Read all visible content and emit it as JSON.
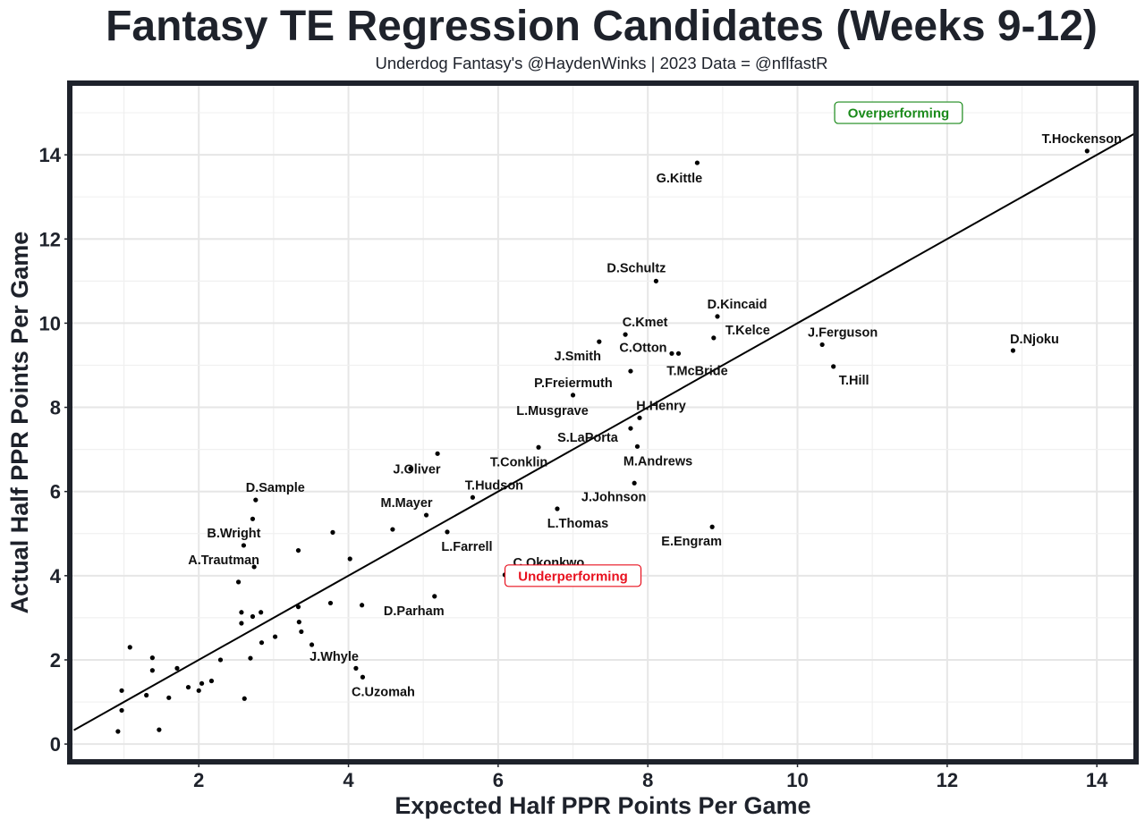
{
  "chart_data": {
    "type": "scatter",
    "title": "Fantasy TE Regression Candidates (Weeks 9-12)",
    "subtitle": "Underdog Fantasy's @HaydenWinks | 2023 Data = @nflfastR",
    "xlabel": "Expected Half PPR Points Per Game",
    "ylabel": "Actual Half PPR Points Per Game",
    "xlim": [
      0.3,
      14.5
    ],
    "ylim": [
      -0.38,
      15.66
    ],
    "xticks": [
      2,
      4,
      6,
      8,
      10,
      12,
      14
    ],
    "yticks": [
      0,
      2,
      4,
      6,
      8,
      10,
      12,
      14
    ],
    "xtick_labels": [
      "2",
      "4",
      "6",
      "8",
      "10",
      "12",
      "14"
    ],
    "ytick_labels": [
      "0",
      "2",
      "4",
      "6",
      "8",
      "10",
      "12",
      "14"
    ],
    "grid": true,
    "reference_line": {
      "type": "y=x",
      "from": [
        0.33,
        0.33
      ],
      "to": [
        14.5,
        14.5
      ]
    },
    "annotations": [
      {
        "text": "Overperforming",
        "x": 11.35,
        "y": 15.0,
        "color": "#1a8a1a"
      },
      {
        "text": "Underperforming",
        "x": 7.0,
        "y": 4.0,
        "color": "#e8101e"
      }
    ],
    "points": [
      {
        "name": "T.Hockenson",
        "x": 13.87,
        "y": 14.09,
        "label_pos": "above"
      },
      {
        "name": "G.Kittle",
        "x": 8.66,
        "y": 13.81,
        "label_pos": "below-left"
      },
      {
        "name": "D.Schultz",
        "x": 8.11,
        "y": 11.0,
        "label_pos": "above-left"
      },
      {
        "name": "D.Kincaid",
        "x": 8.93,
        "y": 10.16,
        "label_pos": "above"
      },
      {
        "name": "T.Kelce",
        "x": 8.88,
        "y": 9.65,
        "label_pos": "right"
      },
      {
        "name": "C.Kmet",
        "x": 7.7,
        "y": 9.73,
        "label_pos": "above"
      },
      {
        "name": "J.Smith",
        "x": 7.35,
        "y": 9.56,
        "label_pos": "below-left"
      },
      {
        "name": "C.Otton",
        "x": 8.32,
        "y": 9.28,
        "label_pos": "left"
      },
      {
        "name": "T.McBride",
        "x": 8.41,
        "y": 9.28,
        "label_pos": "below"
      },
      {
        "name": "P.Freiermuth",
        "x": 7.77,
        "y": 8.86,
        "label_pos": "below-left"
      },
      {
        "name": "L.Musgrave",
        "x": 7.0,
        "y": 8.29,
        "label_pos": "below-left"
      },
      {
        "name": "J.Ferguson",
        "x": 10.33,
        "y": 9.49,
        "label_pos": "above"
      },
      {
        "name": "T.Hill",
        "x": 10.48,
        "y": 8.97,
        "label_pos": "below"
      },
      {
        "name": "D.Njoku",
        "x": 12.88,
        "y": 9.35,
        "label_pos": "above"
      },
      {
        "name": "H.Henry",
        "x": 7.89,
        "y": 7.75,
        "label_pos": "above"
      },
      {
        "name": "S.LaPorta",
        "x": 7.77,
        "y": 7.5,
        "label_pos": "below-left"
      },
      {
        "name": "M.Andrews",
        "x": 7.86,
        "y": 7.07,
        "label_pos": "below"
      },
      {
        "name": "T.Conklin",
        "x": 6.54,
        "y": 7.05,
        "label_pos": "below-left"
      },
      {
        "name": "J.Oliver",
        "x": 4.83,
        "y": 6.54,
        "label_pos": "center"
      },
      {
        "name": "",
        "x": 5.19,
        "y": 6.9
      },
      {
        "name": "T.Hudson",
        "x": 5.66,
        "y": 5.86,
        "label_pos": "above"
      },
      {
        "name": "J.Johnson",
        "x": 7.82,
        "y": 6.2,
        "label_pos": "below-left"
      },
      {
        "name": "L.Thomas",
        "x": 6.79,
        "y": 5.59,
        "label_pos": "below"
      },
      {
        "name": "E.Engram",
        "x": 8.86,
        "y": 5.16,
        "label_pos": "below-left"
      },
      {
        "name": "M.Mayer",
        "x": 5.04,
        "y": 5.44,
        "label_pos": "above-left"
      },
      {
        "name": "",
        "x": 4.59,
        "y": 5.1
      },
      {
        "name": "L.Farrell",
        "x": 5.32,
        "y": 5.04,
        "label_pos": "below"
      },
      {
        "name": "C.Okonkwo",
        "x": 6.09,
        "y": 4.02,
        "label_pos": "above-right"
      },
      {
        "name": "D.Parham",
        "x": 5.15,
        "y": 3.51,
        "label_pos": "below-left"
      },
      {
        "name": "D.Sample",
        "x": 2.76,
        "y": 5.8,
        "label_pos": "above"
      },
      {
        "name": "",
        "x": 2.72,
        "y": 5.35
      },
      {
        "name": "B.Wright",
        "x": 2.6,
        "y": 4.72,
        "label_pos": "above-left"
      },
      {
        "name": "A.Trautman",
        "x": 2.74,
        "y": 4.21,
        "label_pos": "above-left"
      },
      {
        "name": "",
        "x": 3.79,
        "y": 5.03
      },
      {
        "name": "",
        "x": 3.33,
        "y": 4.6
      },
      {
        "name": "",
        "x": 4.02,
        "y": 4.4
      },
      {
        "name": "",
        "x": 2.53,
        "y": 3.85
      },
      {
        "name": "",
        "x": 3.33,
        "y": 3.26
      },
      {
        "name": "",
        "x": 3.76,
        "y": 3.35
      },
      {
        "name": "",
        "x": 4.18,
        "y": 3.3
      },
      {
        "name": "",
        "x": 2.57,
        "y": 3.13
      },
      {
        "name": "",
        "x": 2.83,
        "y": 3.13
      },
      {
        "name": "",
        "x": 2.72,
        "y": 3.03
      },
      {
        "name": "",
        "x": 2.57,
        "y": 2.87
      },
      {
        "name": "",
        "x": 3.34,
        "y": 2.9
      },
      {
        "name": "",
        "x": 3.37,
        "y": 2.67
      },
      {
        "name": "",
        "x": 3.02,
        "y": 2.55
      },
      {
        "name": "",
        "x": 2.84,
        "y": 2.41
      },
      {
        "name": "J.Whyle",
        "x": 3.51,
        "y": 2.36,
        "label_pos": "below"
      },
      {
        "name": "",
        "x": 2.69,
        "y": 2.04
      },
      {
        "name": "",
        "x": 2.29,
        "y": 2.0
      },
      {
        "name": "C.Uzomah",
        "x": 4.19,
        "y": 1.59,
        "label_pos": "below"
      },
      {
        "name": "",
        "x": 4.1,
        "y": 1.8
      },
      {
        "name": "",
        "x": 2.61,
        "y": 1.08
      },
      {
        "name": "",
        "x": 1.08,
        "y": 2.3
      },
      {
        "name": "",
        "x": 1.38,
        "y": 2.05
      },
      {
        "name": "",
        "x": 1.38,
        "y": 1.75
      },
      {
        "name": "",
        "x": 1.71,
        "y": 1.8
      },
      {
        "name": "",
        "x": 2.17,
        "y": 1.5
      },
      {
        "name": "",
        "x": 2.04,
        "y": 1.44
      },
      {
        "name": "",
        "x": 1.86,
        "y": 1.35
      },
      {
        "name": "",
        "x": 2.0,
        "y": 1.27
      },
      {
        "name": "",
        "x": 0.97,
        "y": 1.27
      },
      {
        "name": "",
        "x": 1.3,
        "y": 1.16
      },
      {
        "name": "",
        "x": 1.6,
        "y": 1.1
      },
      {
        "name": "",
        "x": 0.97,
        "y": 0.8
      },
      {
        "name": "",
        "x": 0.92,
        "y": 0.3
      },
      {
        "name": "",
        "x": 1.47,
        "y": 0.34
      }
    ]
  }
}
